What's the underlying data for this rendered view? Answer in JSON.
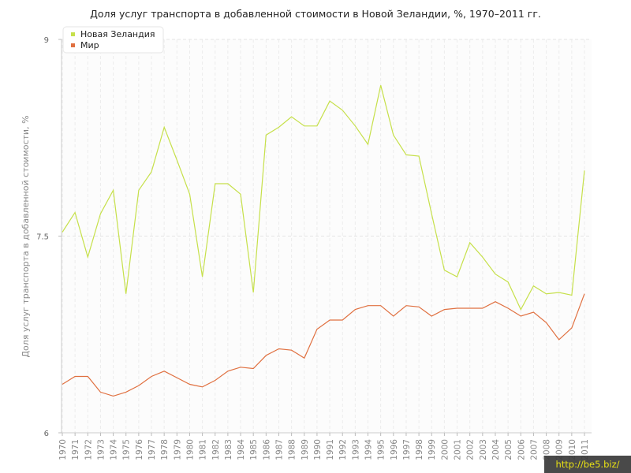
{
  "chart_data": {
    "type": "line",
    "title": "Доля услуг транспорта в добавленной стоимости в Новой Зеландии, %, 1970–2011 гг.",
    "xlabel": "",
    "ylabel": "Доля услуг транспорта в добавленной стоимости, %",
    "ylim": [
      6,
      9
    ],
    "yticks": [
      "6",
      "7.5",
      "9"
    ],
    "grid": true,
    "legend_position": "top-left",
    "x": [
      "1970",
      "1971",
      "1972",
      "1973",
      "1974",
      "1975",
      "1976",
      "1977",
      "1978",
      "1979",
      "1980",
      "1981",
      "1982",
      "1983",
      "1984",
      "1985",
      "1986",
      "1987",
      "1988",
      "1989",
      "1990",
      "1991",
      "1992",
      "1993",
      "1994",
      "1995",
      "1996",
      "1997",
      "1998",
      "1999",
      "2000",
      "2001",
      "2002",
      "2003",
      "2004",
      "2005",
      "2006",
      "2007",
      "2008",
      "2009",
      "2010",
      "2011"
    ],
    "series": [
      {
        "name": "Новая Зеландия",
        "color": "#c6e04a",
        "values": [
          7.53,
          7.68,
          7.34,
          7.67,
          7.85,
          7.06,
          7.85,
          7.99,
          8.33,
          8.08,
          7.82,
          7.19,
          7.9,
          7.9,
          7.82,
          7.07,
          8.27,
          8.33,
          8.41,
          8.34,
          8.34,
          8.53,
          8.46,
          8.34,
          8.2,
          8.65,
          8.27,
          8.12,
          8.11,
          7.67,
          7.24,
          7.19,
          7.45,
          7.34,
          7.21,
          7.15,
          6.94,
          7.12,
          7.06,
          7.07,
          7.05,
          8.0
        ]
      },
      {
        "name": "Мир",
        "color": "#e07040",
        "values": [
          6.37,
          6.43,
          6.43,
          6.31,
          6.28,
          6.31,
          6.36,
          6.43,
          6.47,
          6.42,
          6.37,
          6.35,
          6.4,
          6.47,
          6.5,
          6.49,
          6.59,
          6.64,
          6.63,
          6.57,
          6.79,
          6.86,
          6.86,
          6.94,
          6.97,
          6.97,
          6.89,
          6.97,
          6.96,
          6.89,
          6.94,
          6.95,
          6.95,
          6.95,
          7.0,
          6.95,
          6.89,
          6.92,
          6.84,
          6.71,
          6.8,
          7.06
        ]
      }
    ]
  },
  "watermark": "http://be5.biz/"
}
